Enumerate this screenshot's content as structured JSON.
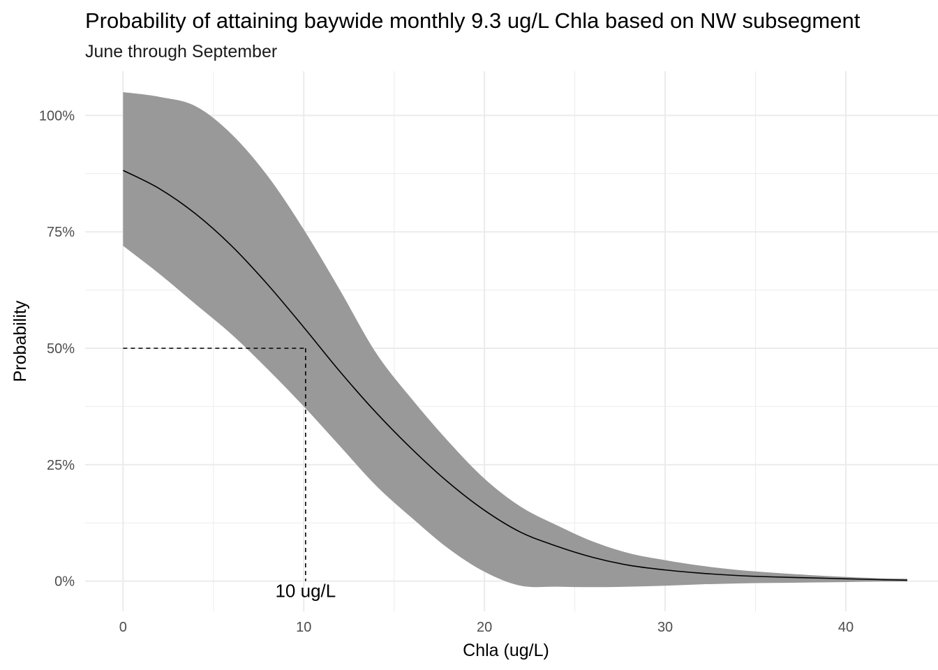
{
  "chart_data": {
    "type": "line",
    "title": "Probability of attaining baywide monthly 9.3 ug/L Chla based on NW subsegment",
    "subtitle": "June through September",
    "xlabel": "Chla (ug/L)",
    "ylabel": "Probability",
    "xlim": [
      -2.1,
      45.1
    ],
    "ylim": [
      -0.065,
      1.095
    ],
    "x_ticks": [
      0,
      10,
      20,
      30,
      40
    ],
    "x_tick_labels": [
      "0",
      "10",
      "20",
      "30",
      "40"
    ],
    "y_ticks": [
      0,
      0.25,
      0.5,
      0.75,
      1.0
    ],
    "y_tick_labels": [
      "0%",
      "25%",
      "50%",
      "75%",
      "100%"
    ],
    "grid": true,
    "series": [
      {
        "x": [
          0,
          2,
          4,
          6,
          8,
          10,
          12,
          14,
          16,
          18,
          20,
          22,
          24,
          26,
          28,
          30,
          32,
          34,
          36,
          38,
          40,
          42,
          43.4
        ],
        "y": [
          0.882,
          0.843,
          0.789,
          0.72,
          0.637,
          0.545,
          0.45,
          0.362,
          0.283,
          0.212,
          0.152,
          0.105,
          0.075,
          0.051,
          0.034,
          0.024,
          0.017,
          0.012,
          0.009,
          0.007,
          0.005,
          0.003,
          0.002
        ],
        "lower": [
          0.72,
          0.66,
          0.595,
          0.53,
          0.455,
          0.375,
          0.29,
          0.205,
          0.135,
          0.07,
          0.02,
          -0.01,
          -0.012,
          -0.013,
          -0.012,
          -0.01,
          -0.007,
          -0.005,
          -0.004,
          -0.003,
          -0.002,
          -0.001,
          -0.001
        ],
        "upper": [
          1.05,
          1.04,
          1.02,
          0.96,
          0.87,
          0.755,
          0.625,
          0.49,
          0.39,
          0.3,
          0.22,
          0.16,
          0.12,
          0.085,
          0.06,
          0.045,
          0.033,
          0.024,
          0.018,
          0.013,
          0.009,
          0.006,
          0.005
        ]
      }
    ],
    "reference_point": {
      "x": 10.1,
      "y": 0.5
    },
    "annotation": "10 ug/L"
  }
}
